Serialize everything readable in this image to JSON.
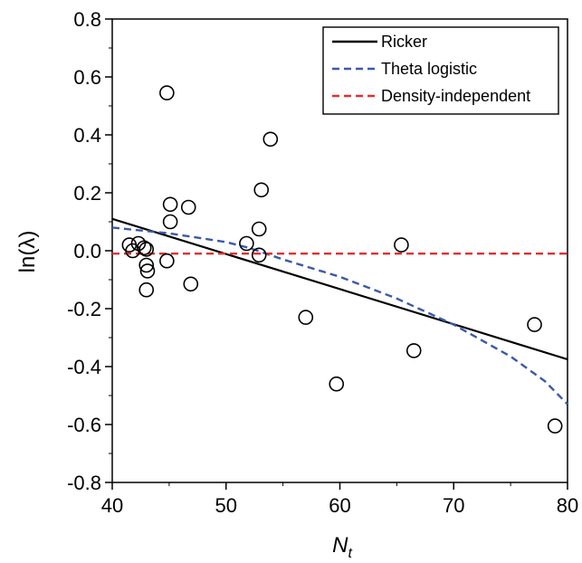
{
  "chart_data": {
    "type": "scatter",
    "xlabel": {
      "main": "N",
      "sub": "t"
    },
    "ylabel": "ln(λ)",
    "xlim": [
      40,
      80
    ],
    "ylim": [
      -0.8,
      0.8
    ],
    "x_ticks": [
      "40",
      "50",
      "60",
      "70",
      "80"
    ],
    "y_ticks": [
      "0.8",
      "0.6",
      "0.4",
      "0.2",
      "0.0",
      "-0.2",
      "-0.4",
      "-0.6",
      "-0.8"
    ],
    "grid": false,
    "legend_position": "top-right",
    "points": [
      {
        "x": 41.5,
        "y": 0.02
      },
      {
        "x": 41.8,
        "y": 0.0
      },
      {
        "x": 42.3,
        "y": 0.025
      },
      {
        "x": 42.8,
        "y": 0.01
      },
      {
        "x": 43.0,
        "y": 0.005
      },
      {
        "x": 43.0,
        "y": -0.05
      },
      {
        "x": 43.1,
        "y": -0.07
      },
      {
        "x": 43.0,
        "y": -0.135
      },
      {
        "x": 44.8,
        "y": 0.545
      },
      {
        "x": 44.8,
        "y": -0.035
      },
      {
        "x": 45.1,
        "y": 0.16
      },
      {
        "x": 45.1,
        "y": 0.1
      },
      {
        "x": 46.7,
        "y": 0.15
      },
      {
        "x": 46.9,
        "y": -0.115
      },
      {
        "x": 51.8,
        "y": 0.025
      },
      {
        "x": 52.9,
        "y": 0.075
      },
      {
        "x": 52.9,
        "y": -0.015
      },
      {
        "x": 53.1,
        "y": 0.21
      },
      {
        "x": 53.9,
        "y": 0.385
      },
      {
        "x": 57.0,
        "y": -0.23
      },
      {
        "x": 59.7,
        "y": -0.46
      },
      {
        "x": 65.4,
        "y": 0.02
      },
      {
        "x": 66.5,
        "y": -0.345
      },
      {
        "x": 77.1,
        "y": -0.255
      },
      {
        "x": 78.9,
        "y": -0.605
      }
    ],
    "series": [
      {
        "name": "Ricker",
        "style": "solid",
        "color": "#000000",
        "x": [
          40,
          80
        ],
        "y": [
          0.11,
          -0.375
        ]
      },
      {
        "name": "Theta logistic",
        "style": "dashed",
        "color": "#3a5aa8",
        "x": [
          40,
          45,
          50,
          52,
          55,
          60,
          65,
          70,
          75,
          78,
          80
        ],
        "y": [
          0.08,
          0.06,
          0.03,
          0.01,
          -0.03,
          -0.09,
          -0.165,
          -0.255,
          -0.365,
          -0.45,
          -0.53
        ]
      },
      {
        "name": "Density-independent",
        "style": "dashed",
        "color": "#e03030",
        "x": [
          40,
          80
        ],
        "y": [
          -0.01,
          -0.01
        ]
      }
    ]
  }
}
